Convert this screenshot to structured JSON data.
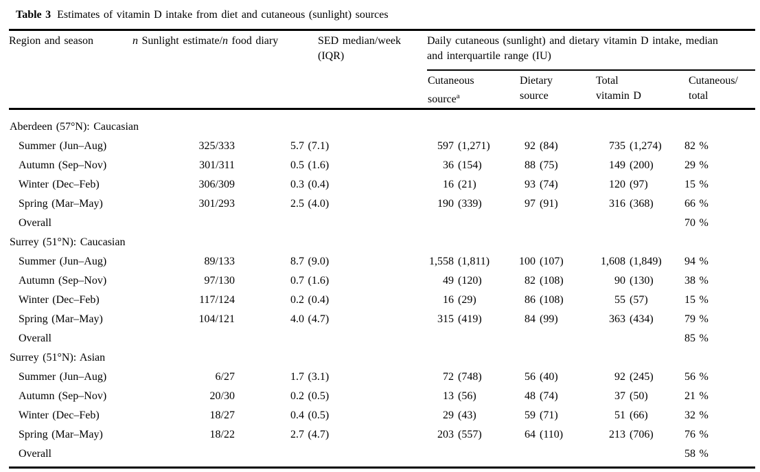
{
  "table": {
    "caption": {
      "label": "Table 3",
      "text": "Estimates of vitamin D intake from diet and cutaneous (sunlight) sources"
    },
    "columns": {
      "region": "Region and season",
      "n": {
        "n1": "n",
        "part1": " Sunlight estimate/",
        "n2": "n",
        "part2": " food diary"
      },
      "sed": {
        "line1": "SED median/week",
        "line2": "(IQR)"
      },
      "daily_span": {
        "line1": "Daily cutaneous (sunlight) and dietary vitamin D intake, median",
        "line2": "and interquartile range (IU)"
      },
      "cutaneous": {
        "line1": "Cutaneous",
        "line2": "source",
        "sup": "a"
      },
      "dietary": {
        "line1": "Dietary",
        "line2": "source"
      },
      "total": {
        "line1": "Total",
        "line2": "vitamin D"
      },
      "ratio": {
        "line1": "Cutaneous/",
        "line2": "total"
      }
    },
    "sections": [
      {
        "region": "Aberdeen (57°N): Caucasian",
        "rows": [
          {
            "season": "Summer (Jun–Aug)",
            "n": "325/333",
            "sed": "5.7 (7.1)",
            "cutaneous": {
              "median": "597",
              "iqr": "(1,271)"
            },
            "dietary": {
              "median": "92",
              "iqr": "(84)"
            },
            "total": {
              "median": "735",
              "iqr": "(1,274)"
            },
            "pct": "82 %"
          },
          {
            "season": "Autumn (Sep–Nov)",
            "n": "301/311",
            "sed": "0.5 (1.6)",
            "cutaneous": {
              "median": "36",
              "iqr": "(154)"
            },
            "dietary": {
              "median": "88",
              "iqr": "(75)"
            },
            "total": {
              "median": "149",
              "iqr": "(200)"
            },
            "pct": "29 %"
          },
          {
            "season": "Winter (Dec–Feb)",
            "n": "306/309",
            "sed": "0.3 (0.4)",
            "cutaneous": {
              "median": "16",
              "iqr": "(21)"
            },
            "dietary": {
              "median": "93",
              "iqr": "(74)"
            },
            "total": {
              "median": "120",
              "iqr": "(97)"
            },
            "pct": "15 %"
          },
          {
            "season": "Spring (Mar–May)",
            "n": "301/293",
            "sed": "2.5 (4.0)",
            "cutaneous": {
              "median": "190",
              "iqr": "(339)"
            },
            "dietary": {
              "median": "97",
              "iqr": "(91)"
            },
            "total": {
              "median": "316",
              "iqr": "(368)"
            },
            "pct": "66 %"
          },
          {
            "season": "Overall",
            "pct": "70 %"
          }
        ]
      },
      {
        "region": "Surrey (51°N): Caucasian",
        "rows": [
          {
            "season": "Summer (Jun–Aug)",
            "n": "89/133",
            "sed": "8.7 (9.0)",
            "cutaneous": {
              "median": "1,558",
              "iqr": "(1,811)"
            },
            "dietary": {
              "median": "100",
              "iqr": "(107)"
            },
            "total": {
              "median": "1,608",
              "iqr": "(1,849)"
            },
            "pct": "94 %"
          },
          {
            "season": "Autumn (Sep–Nov)",
            "n": "97/130",
            "sed": "0.7 (1.6)",
            "cutaneous": {
              "median": "49",
              "iqr": "(120)"
            },
            "dietary": {
              "median": "82",
              "iqr": "(108)"
            },
            "total": {
              "median": "90",
              "iqr": "(130)"
            },
            "pct": "38 %"
          },
          {
            "season": "Winter (Dec–Feb)",
            "n": "117/124",
            "sed": "0.2 (0.4)",
            "cutaneous": {
              "median": "16",
              "iqr": "(29)"
            },
            "dietary": {
              "median": "86",
              "iqr": "(108)"
            },
            "total": {
              "median": "55",
              "iqr": "(57)"
            },
            "pct": "15 %"
          },
          {
            "season": "Spring (Mar–May)",
            "n": "104/121",
            "sed": "4.0 (4.7)",
            "cutaneous": {
              "median": "315",
              "iqr": "(419)"
            },
            "dietary": {
              "median": "84",
              "iqr": "(99)"
            },
            "total": {
              "median": "363",
              "iqr": "(434)"
            },
            "pct": "79 %"
          },
          {
            "season": "Overall",
            "pct": "85 %"
          }
        ]
      },
      {
        "region": "Surrey (51°N): Asian",
        "rows": [
          {
            "season": "Summer (Jun–Aug)",
            "n": "6/27",
            "sed": "1.7 (3.1)",
            "cutaneous": {
              "median": "72",
              "iqr": "(748)"
            },
            "dietary": {
              "median": "56",
              "iqr": "(40)"
            },
            "total": {
              "median": "92",
              "iqr": "(245)"
            },
            "pct": "56 %"
          },
          {
            "season": "Autumn (Sep–Nov)",
            "n": "20/30",
            "sed": "0.2 (0.5)",
            "cutaneous": {
              "median": "13",
              "iqr": "(56)"
            },
            "dietary": {
              "median": "48",
              "iqr": "(74)"
            },
            "total": {
              "median": "37",
              "iqr": "(50)"
            },
            "pct": "21 %"
          },
          {
            "season": "Winter (Dec–Feb)",
            "n": "18/27",
            "sed": "0.4 (0.5)",
            "cutaneous": {
              "median": "29",
              "iqr": "(43)"
            },
            "dietary": {
              "median": "59",
              "iqr": "(71)"
            },
            "total": {
              "median": "51",
              "iqr": "(66)"
            },
            "pct": "32 %"
          },
          {
            "season": "Spring (Mar–May)",
            "n": "18/22",
            "sed": "2.7 (4.7)",
            "cutaneous": {
              "median": "203",
              "iqr": "(557)"
            },
            "dietary": {
              "median": "64",
              "iqr": "(110)"
            },
            "total": {
              "median": "213",
              "iqr": "(706)"
            },
            "pct": "76 %"
          },
          {
            "season": "Overall",
            "pct": "58 %"
          }
        ]
      }
    ]
  }
}
